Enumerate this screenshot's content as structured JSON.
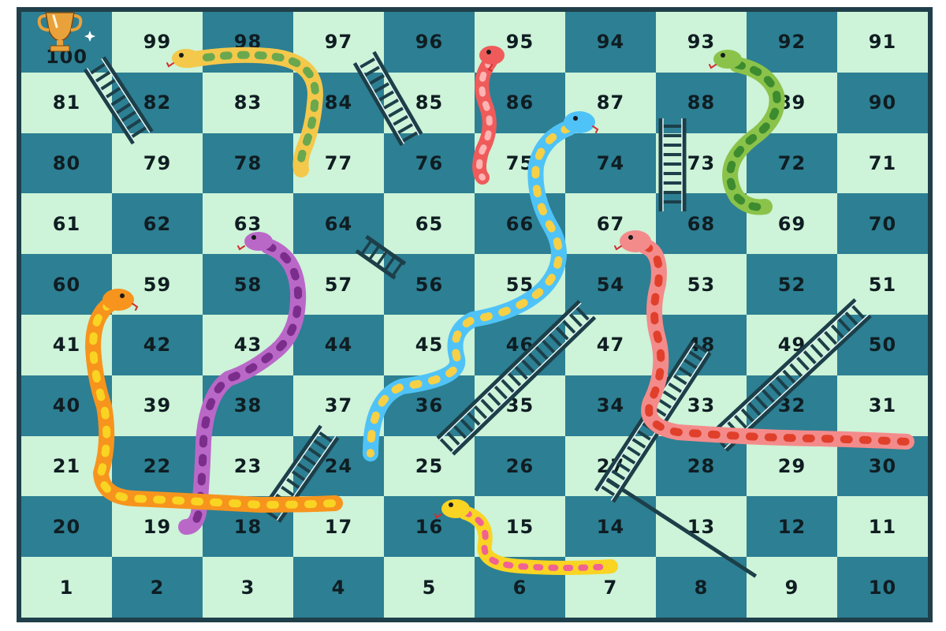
{
  "board": {
    "rows": [
      [
        100,
        99,
        98,
        97,
        96,
        95,
        94,
        93,
        92,
        91
      ],
      [
        81,
        82,
        83,
        84,
        85,
        86,
        87,
        88,
        89,
        90
      ],
      [
        80,
        79,
        78,
        77,
        76,
        75,
        74,
        73,
        72,
        71
      ],
      [
        61,
        62,
        63,
        64,
        65,
        66,
        67,
        68,
        69,
        70
      ],
      [
        60,
        59,
        58,
        57,
        56,
        55,
        54,
        53,
        52,
        51
      ],
      [
        41,
        42,
        43,
        44,
        45,
        46,
        47,
        48,
        49,
        50
      ],
      [
        40,
        39,
        38,
        37,
        36,
        35,
        34,
        33,
        32,
        31
      ],
      [
        21,
        22,
        23,
        24,
        25,
        26,
        27,
        28,
        29,
        30
      ],
      [
        20,
        19,
        18,
        17,
        16,
        15,
        14,
        13,
        12,
        11
      ],
      [
        1,
        2,
        3,
        4,
        5,
        6,
        7,
        8,
        9,
        10
      ]
    ],
    "colors": {
      "frame": "#1f3f4a",
      "dark_square": "#2d7f93",
      "light_square": "#cdf3d8",
      "number": "#0f1d22",
      "ladder": "#1c3f49",
      "ladder_highlight": "#e7f6f4",
      "trophy": "#e9a23b"
    },
    "goal_icon": "trophy-icon"
  },
  "snakes": [
    {
      "color": "#f4c84a",
      "spots": "#6aa84f",
      "from_square": 98,
      "to_square": 77
    },
    {
      "color": "#ef5b5b",
      "spots": "#ffb3b3",
      "from_square": 95,
      "to_square": 75
    },
    {
      "color": "#8bc34a",
      "spots": "#3d8b2f",
      "from_square": 93,
      "to_square": 72
    },
    {
      "color": "#4fc3f7",
      "spots": "#f7d046",
      "from_square": 86,
      "to_square": 24
    },
    {
      "color": "#ba68c8",
      "spots": "#7b2d8b",
      "from_square": 63,
      "to_square": 19
    },
    {
      "color": "#f7941d",
      "spots": "#f9d423",
      "from_square": 60,
      "to_square": 17
    },
    {
      "color": "#f48b8b",
      "spots": "#e0402b",
      "from_square": 67,
      "to_square": 30
    },
    {
      "color": "#f9d423",
      "spots": "#f06292",
      "from_square": 16,
      "to_square": 14
    }
  ],
  "ladders": [
    {
      "from_square": 82,
      "to_square": 100
    },
    {
      "from_square": 76,
      "to_square": 97
    },
    {
      "from_square": 68,
      "to_square": 88
    },
    {
      "from_square": 56,
      "to_square": 64
    },
    {
      "from_square": 18,
      "to_square": 37
    },
    {
      "from_square": 25,
      "to_square": 54
    },
    {
      "from_square": 29,
      "to_square": 50
    },
    {
      "from_square": 9,
      "to_square": 27
    }
  ]
}
